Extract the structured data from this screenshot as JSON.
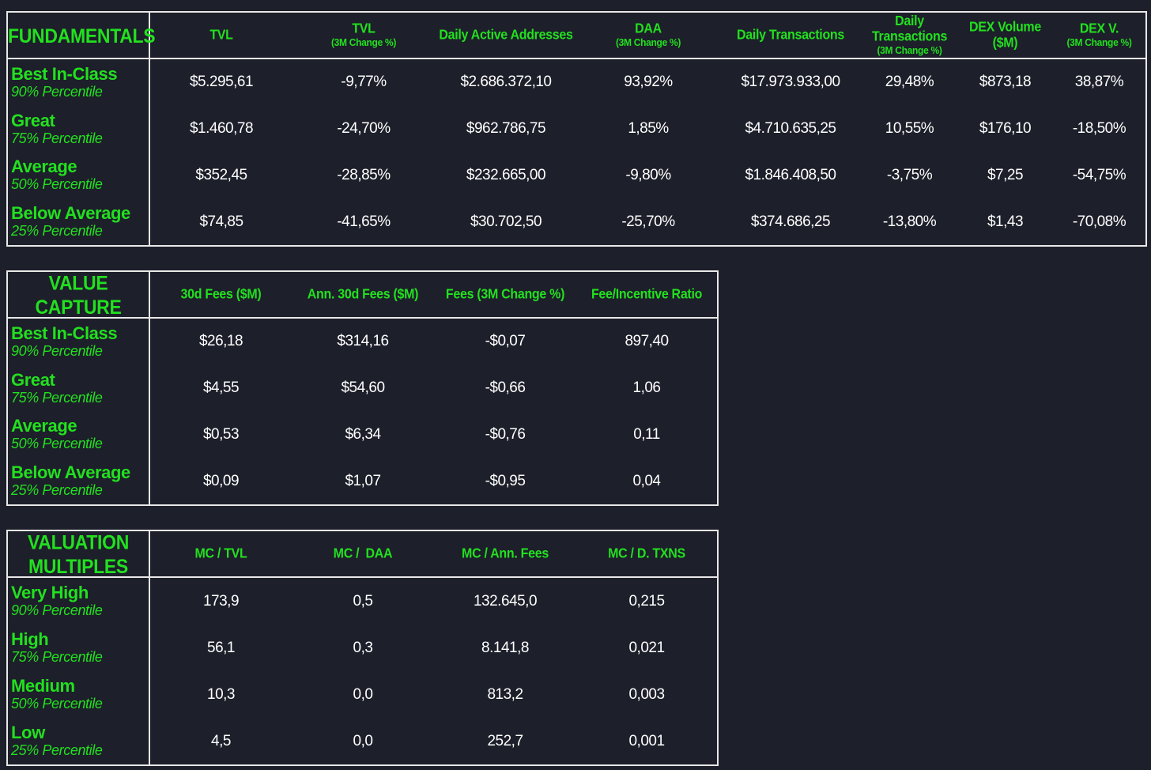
{
  "fundamentals": {
    "title": "FUNDAMENTALS",
    "columns": [
      {
        "main": "TVL",
        "sub": ""
      },
      {
        "main": "TVL",
        "sub": "(3M Change %)"
      },
      {
        "main": "Daily Active Addresses",
        "sub": ""
      },
      {
        "main": "DAA",
        "sub": "(3M Change %)"
      },
      {
        "main": "Daily Transactions",
        "sub": ""
      },
      {
        "main": "Daily Transactions",
        "sub": "(3M Change %)"
      },
      {
        "main": "DEX Volume ($M)",
        "sub": ""
      },
      {
        "main": "DEX V.",
        "sub": "(3M Change %)"
      }
    ],
    "rows": [
      {
        "tier": "Best In-Class",
        "pct": "90% Percentile",
        "values": [
          "$5.295,61",
          "-9,77%",
          "$2.686.372,10",
          "93,92%",
          "$17.973.933,00",
          "29,48%",
          "$873,18",
          "38,87%"
        ]
      },
      {
        "tier": "Great",
        "pct": "75% Percentile",
        "values": [
          "$1.460,78",
          "-24,70%",
          "$962.786,75",
          "1,85%",
          "$4.710.635,25",
          "10,55%",
          "$176,10",
          "-18,50%"
        ]
      },
      {
        "tier": "Average",
        "pct": "50% Percentile",
        "values": [
          "$352,45",
          "-28,85%",
          "$232.665,00",
          "-9,80%",
          "$1.846.408,50",
          "-3,75%",
          "$7,25",
          "-54,75%"
        ]
      },
      {
        "tier": "Below Average",
        "pct": "25% Percentile",
        "values": [
          "$74,85",
          "-41,65%",
          "$30.702,50",
          "-25,70%",
          "$374.686,25",
          "-13,80%",
          "$1,43",
          "-70,08%"
        ]
      }
    ]
  },
  "value_capture": {
    "title": "VALUE CAPTURE",
    "columns": [
      {
        "main": "30d Fees ($M)",
        "sub": ""
      },
      {
        "main": "Ann. 30d Fees ($M)",
        "sub": ""
      },
      {
        "main": "Fees (3M Change %)",
        "sub": ""
      },
      {
        "main": "Fee/Incentive Ratio",
        "sub": ""
      }
    ],
    "rows": [
      {
        "tier": "Best In-Class",
        "pct": "90% Percentile",
        "values": [
          "$26,18",
          "$314,16",
          "-$0,07",
          "897,40"
        ]
      },
      {
        "tier": "Great",
        "pct": "75% Percentile",
        "values": [
          "$4,55",
          "$54,60",
          "-$0,66",
          "1,06"
        ]
      },
      {
        "tier": "Average",
        "pct": "50% Percentile",
        "values": [
          "$0,53",
          "$6,34",
          "-$0,76",
          "0,11"
        ]
      },
      {
        "tier": "Below Average",
        "pct": "25% Percentile",
        "values": [
          "$0,09",
          "$1,07",
          "-$0,95",
          "0,04"
        ]
      }
    ]
  },
  "valuation_multiples": {
    "title": "VALUATION MULTIPLES",
    "columns": [
      {
        "main": "MC / TVL",
        "sub": ""
      },
      {
        "main": "MC /  DAA",
        "sub": ""
      },
      {
        "main": "MC / Ann. Fees",
        "sub": ""
      },
      {
        "main": "MC / D. TXNS",
        "sub": ""
      }
    ],
    "rows": [
      {
        "tier": "Very High",
        "pct": "90% Percentile",
        "values": [
          "173,9",
          "0,5",
          "132.645,0",
          "0,215"
        ]
      },
      {
        "tier": "High",
        "pct": "75% Percentile",
        "values": [
          "56,1",
          "0,3",
          "8.141,8",
          "0,021"
        ]
      },
      {
        "tier": "Medium",
        "pct": "50% Percentile",
        "values": [
          "10,3",
          "0,0",
          "813,2",
          "0,003"
        ]
      },
      {
        "tier": "Low",
        "pct": "25% Percentile",
        "values": [
          "4,5",
          "0,0",
          "252,7",
          "0,001"
        ]
      }
    ]
  }
}
